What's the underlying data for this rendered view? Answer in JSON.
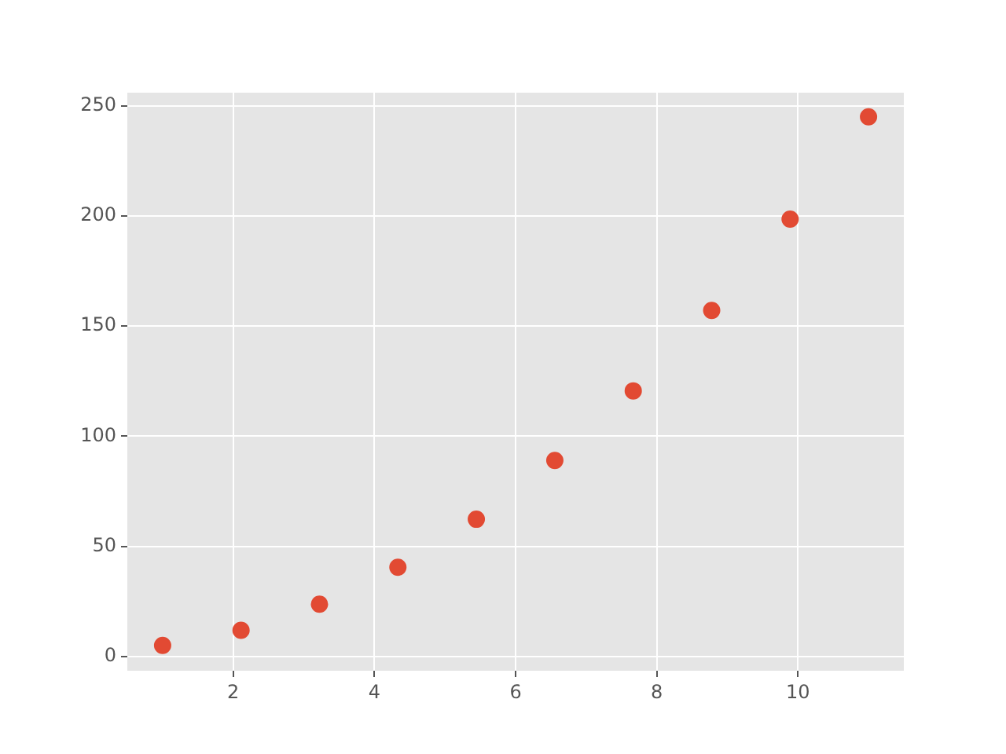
{
  "chart_data": {
    "type": "scatter",
    "x": [
      1,
      2.111,
      3.222,
      4.333,
      5.444,
      6.556,
      7.667,
      8.778,
      9.889,
      11
    ],
    "series": [
      {
        "color": "#e24a33",
        "values": [
          5,
          11.9,
          23.7,
          40.5,
          62.3,
          89,
          120.6,
          157.1,
          198.6,
          245
        ]
      }
    ],
    "xlim": [
      0.5,
      11.5
    ],
    "xticks": [
      2,
      4,
      6,
      8,
      10
    ],
    "ylim": [
      -6.5,
      256
    ],
    "yticks": [
      0,
      50,
      100,
      150,
      200,
      250
    ],
    "grid": true,
    "legend": false,
    "marker": "circle"
  }
}
